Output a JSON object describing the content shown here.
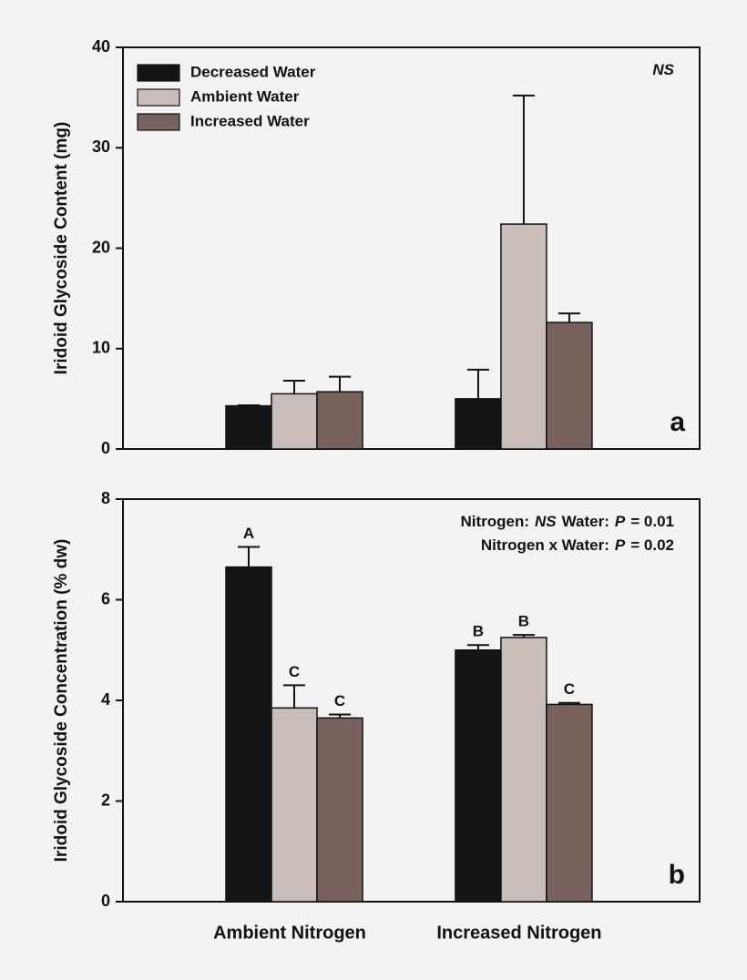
{
  "chart_data": [
    {
      "type": "bar",
      "y_label": "Iridoid Glycoside Content (mg)",
      "panel_label": "a",
      "categories": [
        null,
        null
      ],
      "series": [
        {
          "name": "Decreased Water",
          "color": "#131614",
          "values": [
            4.3,
            5.0
          ],
          "errors": [
            0.05,
            2.9
          ]
        },
        {
          "name": "Ambient Water",
          "color": "#c9bdb9",
          "values": [
            5.5,
            22.4
          ],
          "errors": [
            1.3,
            12.8
          ]
        },
        {
          "name": "Increased Water",
          "color": "#77625d",
          "values": [
            5.7,
            12.6
          ],
          "errors": [
            1.5,
            0.9
          ]
        }
      ],
      "ylim": [
        0,
        40
      ],
      "yticks": [
        0,
        10,
        20,
        30,
        40
      ],
      "legend": "upper left",
      "annotation_lines": [
        [
          {
            "text": "NS",
            "italic": true
          }
        ]
      ]
    },
    {
      "type": "bar",
      "y_label": "Iridoid Glycoside Concentration (% dw)",
      "panel_label": "b",
      "categories": [
        "Ambient Nitrogen",
        "Increased Nitrogen"
      ],
      "series": [
        {
          "color": "#131614",
          "values": [
            6.65,
            5.0
          ],
          "errors": [
            0.4,
            0.1
          ],
          "letters": [
            "A",
            "B"
          ]
        },
        {
          "color": "#c9bdb9",
          "values": [
            3.85,
            5.25
          ],
          "errors": [
            0.45,
            0.05
          ],
          "letters": [
            "C",
            "B"
          ]
        },
        {
          "color": "#77625d",
          "values": [
            3.65,
            3.92
          ],
          "errors": [
            0.07,
            0.03
          ],
          "letters": [
            "C",
            "C"
          ]
        }
      ],
      "ylim": [
        0,
        8
      ],
      "yticks": [
        0,
        2,
        4,
        6,
        8
      ],
      "annotation_lines": [
        [
          {
            "text": "Nitrogen:"
          },
          {
            "text": "NS",
            "italic": true
          },
          {
            "text": "Water:"
          },
          {
            "text": "P",
            "italic": true
          },
          {
            "text": "= 0.01"
          }
        ],
        [
          {
            "text": "Nitrogen x Water:"
          },
          {
            "text": "P",
            "italic": true
          },
          {
            "text": "= 0.02"
          }
        ]
      ]
    }
  ]
}
